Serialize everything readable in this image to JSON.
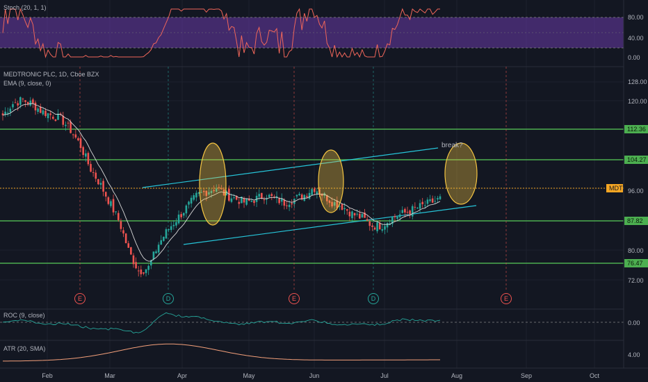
{
  "panels": {
    "stoch": {
      "title": "Stoch (20, 1, 1)",
      "ticks": [
        "80.00",
        "40.00",
        "0.00"
      ]
    },
    "price": {
      "title": "MEDTRONIC PLC, 1D, Cboe BZX",
      "ema_label": "EMA (9, close, 0)",
      "ticks": [
        "128.00",
        "120.00",
        "96.00",
        "80.00",
        "72.00"
      ],
      "levels": [
        {
          "label": "112.36",
          "value": 112.36
        },
        {
          "label": "104.27",
          "value": 104.27
        },
        {
          "label": "87.82",
          "value": 87.82
        },
        {
          "label": "76.47",
          "value": 76.47
        }
      ],
      "symbol_badge": "MDT",
      "current_price_label": "96.00",
      "annotation": "break?",
      "event_markers": [
        "E",
        "D",
        "E",
        "D",
        "E"
      ]
    },
    "roc": {
      "title": "ROC (9, close)",
      "ticks": [
        "0.00"
      ]
    },
    "atr": {
      "title": "ATR (20, SMA)",
      "ticks": [
        "4.00"
      ]
    }
  },
  "time_axis": [
    "Feb",
    "Mar",
    "Apr",
    "May",
    "Jun",
    "Jul",
    "Aug",
    "Sep",
    "Oct"
  ],
  "colors": {
    "background": "#131722",
    "up_candle": "#26a69a",
    "down_candle": "#ef5350",
    "level_line": "#4caf50",
    "channel": "#26c6da",
    "highlight_ellipse": "#f5c542",
    "stoch_band": "#7b3fbf",
    "current_price": "#f5a623"
  },
  "chart_data": {
    "type": "candlestick",
    "title": "MEDTRONIC PLC, 1D, Cboe BZX",
    "ylim": [
      68,
      130
    ],
    "x": [
      "Feb",
      "Mar",
      "Apr",
      "May",
      "Jun",
      "Jul"
    ],
    "close_path": [
      118,
      121,
      122,
      121,
      119,
      118,
      117,
      114,
      110,
      104,
      100,
      95,
      90,
      82,
      77,
      78,
      84,
      88,
      91,
      94,
      97,
      98,
      99,
      97,
      96,
      95,
      96,
      97,
      96,
      95,
      96,
      97,
      99,
      97,
      95,
      94,
      92,
      91,
      89,
      89,
      91,
      92,
      93,
      94,
      95,
      96
    ],
    "horizontal_levels": [
      112.36,
      104.27,
      87.82,
      76.47
    ],
    "current_price": 96.0,
    "stoch_levels": [
      80,
      20
    ]
  }
}
